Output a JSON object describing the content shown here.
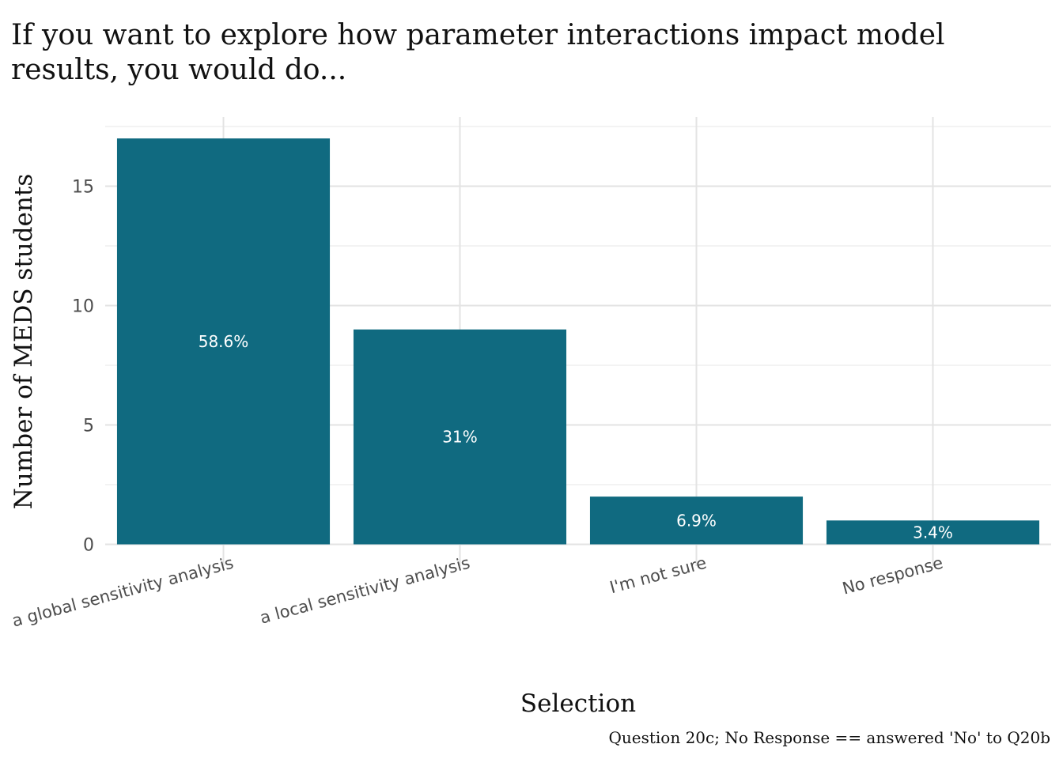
{
  "chart_data": {
    "type": "bar",
    "title_lines": [
      "If you want to explore how parameter interactions impact model",
      "results, you would do..."
    ],
    "xlabel": "Selection",
    "ylabel": "Number of MEDS students",
    "caption": "Question 20c; No Response == answered 'No' to Q20b",
    "categories": [
      "a global sensitivity analysis",
      "a local sensitivity analysis",
      "I'm not sure",
      "No response"
    ],
    "values": [
      17,
      9,
      2,
      1
    ],
    "data_labels": [
      "58.6%",
      "31%",
      "6.9%",
      "3.4%"
    ],
    "ylim": [
      0,
      18
    ],
    "yticks": [
      0,
      5,
      10,
      15
    ],
    "bar_color": "#106a80",
    "grid": true,
    "legend": "none"
  }
}
